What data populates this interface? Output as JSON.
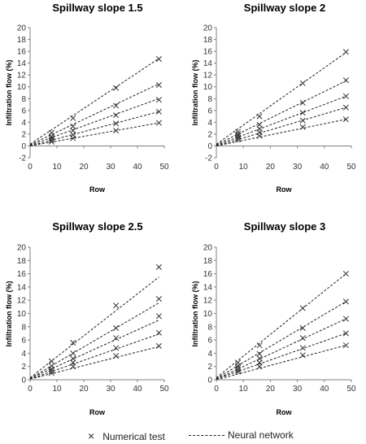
{
  "chart_data": [
    {
      "type": "scatter",
      "title": "Spillway slope 1.5",
      "xlabel": "Row",
      "ylabel": "Infiltration flow (%)",
      "xlim": [
        0,
        50
      ],
      "ylim": [
        -2,
        20
      ],
      "xticks": [
        "0",
        "10",
        "20",
        "30",
        "40",
        "50"
      ],
      "yticks": [
        "-2",
        "0",
        "2",
        "4",
        "6",
        "8",
        "10",
        "12",
        "14",
        "16",
        "18",
        "20"
      ],
      "series": [
        {
          "points": [
            [
              8,
              2.2
            ],
            [
              16,
              4.7
            ],
            [
              32,
              9.8
            ],
            [
              48,
              14.7
            ]
          ],
          "fit": [
            0,
            0.3,
            48,
            14.8
          ]
        },
        {
          "points": [
            [
              8,
              1.6
            ],
            [
              16,
              3.3
            ],
            [
              32,
              6.8
            ],
            [
              48,
              10.3
            ]
          ],
          "fit": [
            0,
            0.2,
            48,
            10.5
          ]
        },
        {
          "points": [
            [
              8,
              1.3
            ],
            [
              16,
              2.6
            ],
            [
              32,
              5.2
            ],
            [
              48,
              7.8
            ]
          ],
          "fit": [
            0,
            0.1,
            48,
            8.0
          ]
        },
        {
          "points": [
            [
              8,
              1.0
            ],
            [
              16,
              1.9
            ],
            [
              32,
              3.8
            ],
            [
              48,
              5.8
            ]
          ],
          "fit": [
            0,
            0.0,
            48,
            5.8
          ]
        },
        {
          "points": [
            [
              8,
              0.7
            ],
            [
              16,
              1.3
            ],
            [
              32,
              2.6
            ],
            [
              48,
              3.9
            ]
          ],
          "fit": [
            0,
            0.0,
            48,
            3.9
          ]
        }
      ]
    },
    {
      "type": "scatter",
      "title": "Spillway slope 2",
      "xlabel": "Row",
      "ylabel": "Infiltration flow (%)",
      "xlim": [
        0,
        50
      ],
      "ylim": [
        -2,
        20
      ],
      "xticks": [
        "0",
        "10",
        "20",
        "30",
        "40",
        "50"
      ],
      "yticks": [
        "-2",
        "0",
        "2",
        "4",
        "6",
        "8",
        "10",
        "12",
        "14",
        "16",
        "18",
        "20"
      ],
      "series": [
        {
          "points": [
            [
              8,
              2.4
            ],
            [
              16,
              5.0
            ],
            [
              32,
              10.6
            ],
            [
              48,
              15.9
            ]
          ],
          "fit": [
            0,
            0.3,
            48,
            15.8
          ]
        },
        {
          "points": [
            [
              8,
              2.0
            ],
            [
              16,
              3.6
            ],
            [
              32,
              7.3
            ],
            [
              48,
              11.1
            ]
          ],
          "fit": [
            0,
            0.2,
            48,
            11.0
          ]
        },
        {
          "points": [
            [
              8,
              1.7
            ],
            [
              16,
              2.9
            ],
            [
              32,
              5.6
            ],
            [
              48,
              8.4
            ]
          ],
          "fit": [
            0,
            0.1,
            48,
            8.4
          ]
        },
        {
          "points": [
            [
              8,
              1.4
            ],
            [
              16,
              2.3
            ],
            [
              32,
              4.3
            ],
            [
              48,
              6.5
            ]
          ],
          "fit": [
            0,
            0.0,
            48,
            6.5
          ]
        },
        {
          "points": [
            [
              8,
              1.1
            ],
            [
              16,
              1.7
            ],
            [
              32,
              3.2
            ],
            [
              48,
              4.5
            ]
          ],
          "fit": [
            0,
            0.0,
            48,
            4.5
          ]
        }
      ]
    },
    {
      "type": "scatter",
      "title": "Spillway slope 2.5",
      "xlabel": "Row",
      "ylabel": "Infiltration flow (%)",
      "xlim": [
        0,
        50
      ],
      "ylim": [
        0,
        20
      ],
      "xticks": [
        "0",
        "10",
        "20",
        "30",
        "40",
        "50"
      ],
      "yticks": [
        "0",
        "2",
        "4",
        "6",
        "8",
        "10",
        "12",
        "14",
        "16",
        "18",
        "20"
      ],
      "series": [
        {
          "points": [
            [
              8,
              2.8
            ],
            [
              16,
              5.6
            ],
            [
              32,
              11.2
            ],
            [
              48,
              17.0
            ]
          ],
          "fit": [
            0,
            0.3,
            48,
            15.5
          ]
        },
        {
          "points": [
            [
              8,
              2.1
            ],
            [
              16,
              4.0
            ],
            [
              32,
              7.8
            ],
            [
              48,
              12.2
            ]
          ],
          "fit": [
            0,
            0.2,
            48,
            11.6
          ]
        },
        {
          "points": [
            [
              8,
              1.6
            ],
            [
              16,
              3.2
            ],
            [
              32,
              6.3
            ],
            [
              48,
              9.6
            ]
          ],
          "fit": [
            0,
            0.2,
            48,
            9.0
          ]
        },
        {
          "points": [
            [
              8,
              1.3
            ],
            [
              16,
              2.6
            ],
            [
              32,
              4.8
            ],
            [
              48,
              7.1
            ]
          ],
          "fit": [
            0,
            0.1,
            48,
            6.9
          ]
        },
        {
          "points": [
            [
              8,
              1.0
            ],
            [
              16,
              2.0
            ],
            [
              32,
              3.6
            ],
            [
              48,
              5.1
            ]
          ],
          "fit": [
            0,
            0.1,
            48,
            5.0
          ]
        }
      ]
    },
    {
      "type": "scatter",
      "title": "Spillway slope 3",
      "xlabel": "Row",
      "ylabel": "Infiltration flow (%)",
      "xlim": [
        0,
        50
      ],
      "ylim": [
        0,
        20
      ],
      "xticks": [
        "0",
        "10",
        "20",
        "30",
        "40",
        "50"
      ],
      "yticks": [
        "0",
        "2",
        "4",
        "6",
        "8",
        "10",
        "12",
        "14",
        "16",
        "18",
        "20"
      ],
      "series": [
        {
          "points": [
            [
              8,
              2.6
            ],
            [
              16,
              5.2
            ],
            [
              32,
              10.8
            ],
            [
              48,
              16.0
            ]
          ],
          "fit": [
            0,
            0.3,
            48,
            16.0
          ]
        },
        {
          "points": [
            [
              8,
              2.1
            ],
            [
              16,
              3.9
            ],
            [
              32,
              7.8
            ],
            [
              48,
              11.8
            ]
          ],
          "fit": [
            0,
            0.2,
            48,
            11.8
          ]
        },
        {
          "points": [
            [
              8,
              1.8
            ],
            [
              16,
              3.2
            ],
            [
              32,
              6.3
            ],
            [
              48,
              9.2
            ]
          ],
          "fit": [
            0,
            0.1,
            48,
            9.2
          ]
        },
        {
          "points": [
            [
              8,
              1.5
            ],
            [
              16,
              2.6
            ],
            [
              32,
              4.8
            ],
            [
              48,
              7.0
            ]
          ],
          "fit": [
            0,
            0.1,
            48,
            7.0
          ]
        },
        {
          "points": [
            [
              8,
              1.2
            ],
            [
              16,
              2.0
            ],
            [
              32,
              3.7
            ],
            [
              48,
              5.2
            ]
          ],
          "fit": [
            0,
            0.0,
            48,
            5.2
          ]
        }
      ]
    }
  ],
  "legend": {
    "marker_symbol": "×",
    "marker_label": "Numerical test",
    "line_label": "Neural network"
  }
}
